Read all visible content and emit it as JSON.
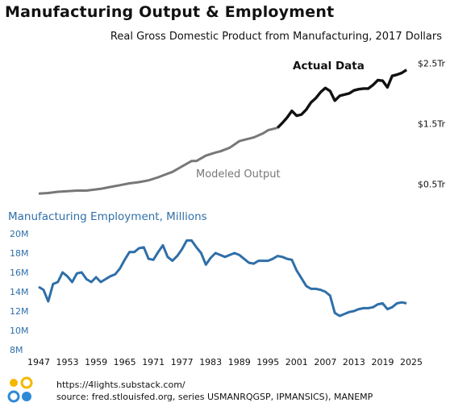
{
  "header": {
    "title": "Manufacturing Output & Employment",
    "subtitle": "Real Gross Domestic Product from Manufacturing, 2017 Dollars"
  },
  "colors": {
    "actual": "#111111",
    "modeled": "#777777",
    "employment": "#2f6fa8",
    "logo_yellow": "#f5b800",
    "logo_blue": "#2f8ad6"
  },
  "footer": {
    "url": "https://4lights.substack.com/",
    "source": "source: fred.stlouisfed.org, series USMANRQGSP, IPMANSICS), MANEMP"
  },
  "chart_data": [
    {
      "type": "line",
      "title": "Real Gross Domestic Product from Manufacturing, 2017 Dollars",
      "y_ticks": [
        {
          "value": 2.5,
          "label": "$2.5Tr"
        },
        {
          "value": 1.5,
          "label": "$1.5Tr"
        },
        {
          "value": 0.5,
          "label": "$0.5Tr"
        }
      ],
      "ylim": [
        0.33,
        2.68
      ],
      "xlim": [
        1947,
        2025
      ],
      "grid": false,
      "annotations": [
        "Actual Data",
        "Modeled Output"
      ],
      "series": [
        {
          "name": "Modeled Output",
          "x": [
            1947,
            1949,
            1951,
            1953,
            1955,
            1957,
            1958,
            1960,
            1962,
            1964,
            1966,
            1968,
            1970,
            1972,
            1974,
            1975,
            1977,
            1979,
            1980,
            1982,
            1984,
            1985,
            1987,
            1989,
            1990,
            1992,
            1994,
            1995,
            1997
          ],
          "values": [
            0.34,
            0.35,
            0.37,
            0.38,
            0.39,
            0.39,
            0.4,
            0.42,
            0.45,
            0.48,
            0.51,
            0.53,
            0.56,
            0.61,
            0.67,
            0.7,
            0.79,
            0.88,
            0.88,
            0.97,
            1.02,
            1.04,
            1.1,
            1.21,
            1.23,
            1.27,
            1.34,
            1.39,
            1.43
          ]
        },
        {
          "name": "Actual Data",
          "x": [
            1997,
            1998,
            1999,
            2000,
            2001,
            2002,
            2003,
            2004,
            2005,
            2006,
            2007,
            2008,
            2009,
            2010,
            2011,
            2012,
            2013,
            2014,
            2015,
            2016,
            2017,
            2018,
            2019,
            2020,
            2021,
            2022,
            2023,
            2024
          ],
          "values": [
            1.43,
            1.51,
            1.6,
            1.71,
            1.63,
            1.65,
            1.73,
            1.85,
            1.92,
            2.02,
            2.09,
            2.04,
            1.88,
            1.96,
            1.98,
            2.0,
            2.05,
            2.07,
            2.08,
            2.08,
            2.14,
            2.22,
            2.21,
            2.1,
            2.29,
            2.31,
            2.34,
            2.39
          ]
        }
      ]
    },
    {
      "type": "line",
      "title": "Manufacturing Employment, Millions",
      "x_ticks": [
        1947,
        1953,
        1959,
        1965,
        1971,
        1977,
        1983,
        1989,
        1995,
        2001,
        2007,
        2013,
        2019,
        2025
      ],
      "y_ticks": [
        {
          "value": 8,
          "label": "8M"
        },
        {
          "value": 10,
          "label": "10M"
        },
        {
          "value": 12,
          "label": "12M"
        },
        {
          "value": 14,
          "label": "14M"
        },
        {
          "value": 16,
          "label": "16M"
        },
        {
          "value": 18,
          "label": "18M"
        },
        {
          "value": 20,
          "label": "20M"
        }
      ],
      "ylim": [
        8,
        20
      ],
      "xlim": [
        1947,
        2025
      ],
      "grid": false,
      "series": [
        {
          "name": "Manufacturing Employment, Millions",
          "x": [
            1947,
            1948,
            1949,
            1950,
            1951,
            1952,
            1953,
            1954,
            1955,
            1956,
            1957,
            1958,
            1959,
            1960,
            1961,
            1962,
            1963,
            1964,
            1965,
            1966,
            1967,
            1968,
            1969,
            1970,
            1971,
            1972,
            1973,
            1974,
            1975,
            1976,
            1977,
            1978,
            1979,
            1980,
            1981,
            1982,
            1983,
            1984,
            1985,
            1986,
            1987,
            1988,
            1989,
            1990,
            1991,
            1992,
            1993,
            1994,
            1995,
            1996,
            1997,
            1998,
            1999,
            2000,
            2001,
            2002,
            2003,
            2004,
            2005,
            2006,
            2007,
            2008,
            2009,
            2010,
            2011,
            2012,
            2013,
            2014,
            2015,
            2016,
            2017,
            2018,
            2019,
            2020,
            2021,
            2022,
            2023,
            2024
          ],
          "values": [
            14.5,
            14.2,
            13.0,
            14.8,
            15.0,
            16.0,
            15.6,
            15.0,
            15.9,
            16.0,
            15.3,
            15.0,
            15.5,
            15.0,
            15.3,
            15.6,
            15.8,
            16.4,
            17.3,
            18.1,
            18.1,
            18.5,
            18.6,
            17.4,
            17.3,
            18.1,
            18.8,
            17.6,
            17.2,
            17.7,
            18.4,
            19.3,
            19.3,
            18.6,
            18.0,
            16.8,
            17.5,
            18.0,
            17.8,
            17.6,
            17.8,
            18.0,
            17.8,
            17.4,
            17.0,
            16.9,
            17.2,
            17.2,
            17.2,
            17.4,
            17.7,
            17.6,
            17.4,
            17.3,
            16.2,
            15.4,
            14.6,
            14.3,
            14.3,
            14.2,
            14.0,
            13.6,
            11.8,
            11.5,
            11.7,
            11.9,
            12.0,
            12.2,
            12.3,
            12.3,
            12.4,
            12.7,
            12.8,
            12.2,
            12.4,
            12.8,
            12.9,
            12.8
          ]
        }
      ]
    }
  ]
}
